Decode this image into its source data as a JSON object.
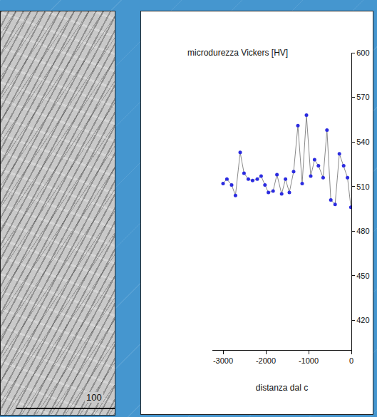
{
  "micrograph": {
    "scale_label": "100"
  },
  "chart_data": {
    "type": "scatter",
    "marker": "circle",
    "line_style": "solid",
    "ylabel": "microdurezza Vickers [HV]",
    "xlabel": "distanza dal c",
    "x": [
      -3000,
      -2910,
      -2800,
      -2710,
      -2600,
      -2510,
      -2410,
      -2310,
      -2200,
      -2110,
      -2020,
      -1940,
      -1830,
      -1740,
      -1630,
      -1540,
      -1450,
      -1350,
      -1250,
      -1150,
      -1050,
      -950,
      -860,
      -770,
      -660,
      -570,
      -480,
      -380,
      -280,
      -180,
      -90,
      -10
    ],
    "values": [
      512,
      515,
      511,
      504,
      533,
      519,
      515,
      514,
      515,
      517,
      511,
      506,
      507,
      518,
      505,
      515,
      506,
      520,
      551,
      512,
      558,
      517,
      528,
      524,
      516,
      548,
      501,
      498,
      532,
      524,
      516,
      496
    ],
    "color": "#2b2be0",
    "xlim": [
      -3250,
      0
    ],
    "ylim": [
      400,
      600
    ],
    "xticks": [
      -3000,
      -2000,
      -1000,
      0
    ],
    "yticks": [
      420,
      450,
      480,
      510,
      540,
      570,
      600
    ],
    "grid": false
  }
}
